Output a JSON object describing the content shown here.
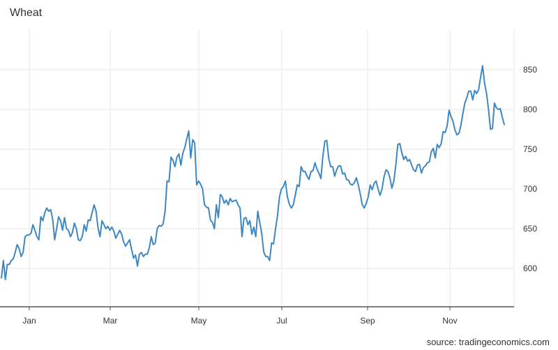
{
  "chart_data": {
    "type": "line",
    "title": "Wheat",
    "source": "source: tradingeconomics.com",
    "xlabel": "",
    "ylabel": "",
    "x_ticks": [
      "Jan",
      "Mar",
      "May",
      "Jul",
      "Sep",
      "Nov"
    ],
    "y_ticks": [
      600,
      650,
      700,
      750,
      800,
      850
    ],
    "ylim": [
      553,
      897
    ],
    "grid": true,
    "y_axis_side": "right",
    "series": [
      {
        "color": "#3d87c2",
        "values": [
          588,
          610,
          586,
          605,
          605,
          610,
          612,
          620,
          630,
          625,
          615,
          620,
          640,
          642,
          642,
          644,
          655,
          648,
          640,
          636,
          665,
          660,
          670,
          676,
          672,
          674,
          662,
          636,
          650,
          665,
          660,
          648,
          664,
          650,
          648,
          640,
          645,
          657,
          650,
          636,
          635,
          640,
          655,
          647,
          661,
          660,
          670,
          680,
          672,
          651,
          640,
          660,
          655,
          650,
          653,
          648,
          652,
          647,
          638,
          643,
          648,
          643,
          633,
          628,
          632,
          636,
          624,
          613,
          617,
          603,
          618,
          620,
          615,
          618,
          618,
          626,
          640,
          630,
          632,
          650,
          654,
          653,
          656,
          672,
          710,
          709,
          740,
          736,
          728,
          740,
          744,
          730,
          745,
          752,
          763,
          773,
          739,
          762,
          758,
          705,
          710,
          706,
          700,
          680,
          677,
          676,
          661,
          658,
          650,
          680,
          664,
          693,
          690,
          682,
          686,
          680,
          688,
          684,
          685,
          686,
          680,
          676,
          640,
          663,
          664,
          655,
          660,
          643,
          652,
          640,
          672,
          658,
          644,
          621,
          615,
          615,
          610,
          632,
          631,
          650,
          666,
          690,
          700,
          703,
          710,
          690,
          681,
          676,
          680,
          692,
          705,
          703,
          728,
          722,
          722,
          716,
          712,
          722,
          723,
          733,
          725,
          720,
          713,
          741,
          760,
          761,
          738,
          728,
          728,
          716,
          724,
          729,
          729,
          719,
          720,
          712,
          711,
          706,
          705,
          708,
          714,
          705,
          693,
          680,
          676,
          682,
          690,
          705,
          699,
          707,
          710,
          700,
          692,
          700,
          715,
          724,
          722,
          714,
          701,
          710,
          730,
          756,
          757,
          746,
          737,
          741,
          735,
          737,
          730,
          724,
          722,
          730,
          731,
          720,
          727,
          729,
          733,
          734,
          747,
          751,
          739,
          756,
          752,
          757,
          772,
          771,
          779,
          799,
          791,
          785,
          774,
          768,
          770,
          780,
          795,
          808,
          815,
          823,
          823,
          812,
          824,
          820,
          825,
          841,
          855,
          833,
          820,
          800,
          775,
          776,
          808,
          802,
          800,
          801,
          790,
          781
        ]
      }
    ]
  }
}
